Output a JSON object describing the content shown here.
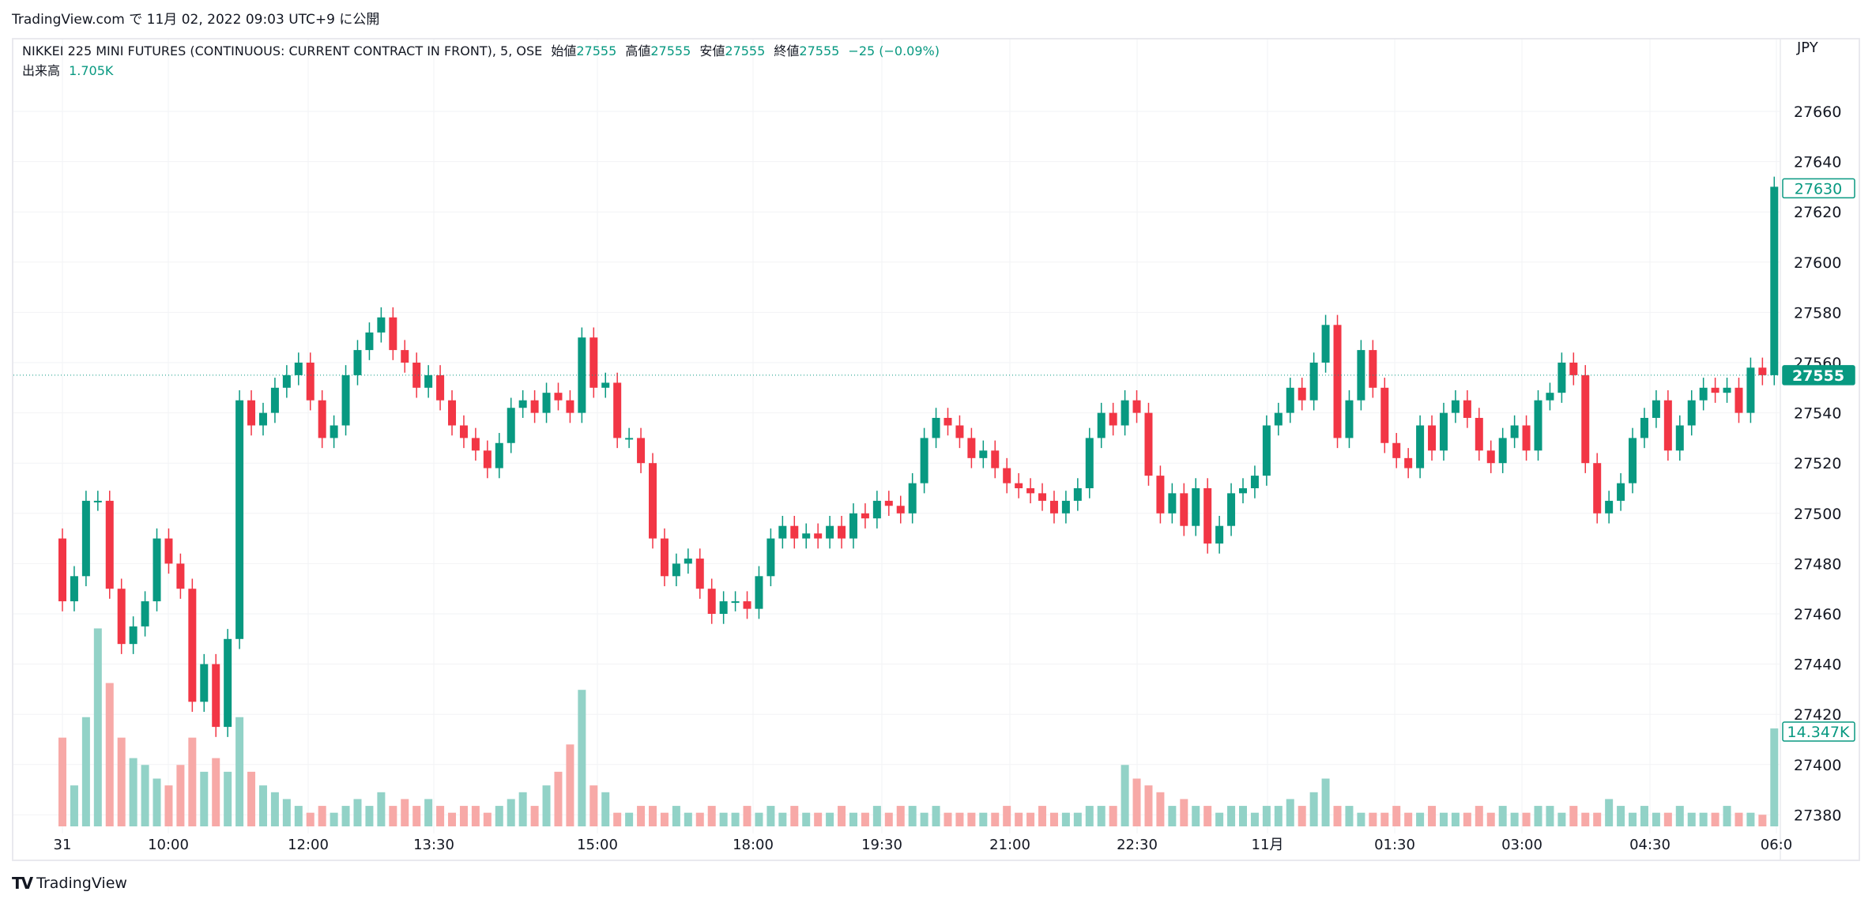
{
  "published": "TradingView.com で 11月 02, 2022 09:03 UTC+9 に公開",
  "legend": {
    "symbol": "NIKKEI 225 MINI FUTURES (CONTINUOUS: CURRENT CONTRACT IN FRONT), 5, OSE",
    "open_label": "始値",
    "open": "27555",
    "high_label": "高値",
    "high": "27555",
    "low_label": "安値",
    "low": "27555",
    "close_label": "終値",
    "close": "27555",
    "change": "−25 (−0.09%)",
    "volume_label": "出来高",
    "volume": "1.705K"
  },
  "footer": {
    "logo_text": "TradingView",
    "logo_icon": "tradingview-logo-icon"
  },
  "colors": {
    "up": "#089981",
    "down": "#f23645",
    "vol_up": "#92d2c7",
    "vol_down": "#f7a9a7"
  },
  "chart_data": {
    "type": "candlestick",
    "currency": "JPY",
    "y_ticks": [
      27660,
      27640,
      27620,
      27600,
      27580,
      27560,
      27540,
      27520,
      27500,
      27480,
      27460,
      27440,
      27420,
      27400,
      27380
    ],
    "ylim": [
      27370,
      27690
    ],
    "x_ticks": [
      "31",
      "10:00",
      "12:00",
      "13:30",
      "15:00",
      "18:00",
      "19:30",
      "21:00",
      "22:30",
      "11月",
      "01:30",
      "03:00",
      "04:30",
      "06:0"
    ],
    "first_open": 27490,
    "close": [
      27465,
      27475,
      27505,
      27505,
      27470,
      27448,
      27455,
      27465,
      27490,
      27480,
      27470,
      27425,
      27440,
      27415,
      27450,
      27545,
      27535,
      27540,
      27550,
      27555,
      27560,
      27545,
      27530,
      27535,
      27555,
      27565,
      27572,
      27578,
      27565,
      27560,
      27550,
      27555,
      27545,
      27535,
      27530,
      27525,
      27518,
      27528,
      27542,
      27545,
      27540,
      27548,
      27545,
      27540,
      27570,
      27550,
      27552,
      27530,
      27530,
      27520,
      27490,
      27475,
      27480,
      27482,
      27470,
      27460,
      27465,
      27465,
      27462,
      27475,
      27490,
      27495,
      27490,
      27492,
      27490,
      27495,
      27490,
      27500,
      27498,
      27505,
      27503,
      27500,
      27512,
      27530,
      27538,
      27535,
      27530,
      27522,
      27525,
      27518,
      27512,
      27510,
      27508,
      27505,
      27500,
      27505,
      27510,
      27530,
      27540,
      27535,
      27545,
      27540,
      27515,
      27500,
      27508,
      27495,
      27510,
      27488,
      27495,
      27508,
      27510,
      27515,
      27535,
      27540,
      27550,
      27545,
      27560,
      27575,
      27530,
      27545,
      27565,
      27550,
      27528,
      27522,
      27518,
      27535,
      27525,
      27540,
      27545,
      27538,
      27525,
      27520,
      27530,
      27535,
      27525,
      27545,
      27548,
      27560,
      27555,
      27520,
      27500,
      27505,
      27512,
      27530,
      27538,
      27545,
      27525,
      27535,
      27545,
      27550,
      27548,
      27550,
      27540,
      27558,
      27555,
      27630
    ],
    "volume_k": [
      13,
      6,
      16,
      29,
      21,
      13,
      10,
      9,
      7,
      6,
      9,
      13,
      8,
      10,
      8,
      16,
      8,
      6,
      5,
      4,
      3,
      2,
      3,
      2,
      3,
      4,
      3,
      5,
      3,
      4,
      3,
      4,
      3,
      2,
      3,
      3,
      2,
      3,
      4,
      5,
      3,
      6,
      8,
      12,
      20,
      6,
      5,
      2,
      2,
      3,
      3,
      2,
      3,
      2,
      2,
      3,
      2,
      2,
      3,
      2,
      3,
      2,
      3,
      2,
      2,
      2,
      3,
      2,
      2,
      3,
      2,
      3,
      3,
      2,
      3,
      2,
      2,
      2,
      2,
      2,
      3,
      2,
      2,
      3,
      2,
      2,
      2,
      3,
      3,
      3,
      9,
      7,
      6,
      5,
      3,
      4,
      3,
      3,
      2,
      3,
      3,
      2,
      3,
      3,
      4,
      3,
      5,
      7,
      3,
      3,
      2,
      2,
      2,
      3,
      2,
      2,
      3,
      2,
      2,
      2,
      3,
      2,
      3,
      2,
      2,
      3,
      3,
      2,
      3,
      2,
      2,
      4,
      3,
      2,
      3,
      2,
      2,
      3,
      2,
      2,
      2,
      3,
      2,
      2,
      1.705,
      14.347
    ],
    "last_price_label": "27555",
    "next_session_label": "27630",
    "volume_label": "14.347K"
  }
}
